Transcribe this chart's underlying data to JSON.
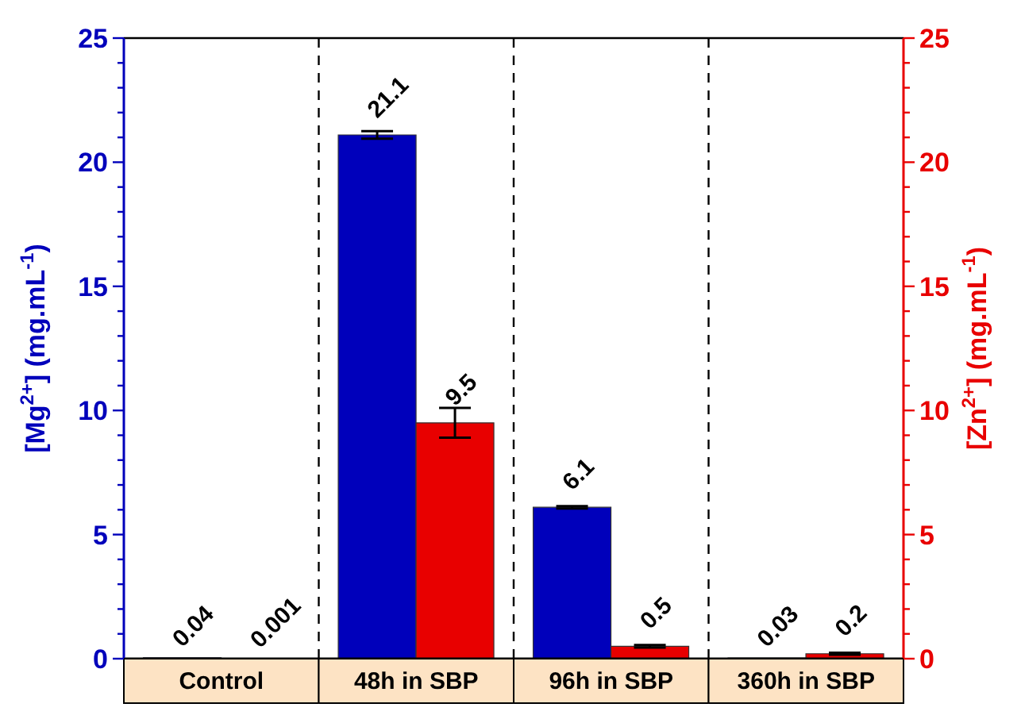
{
  "chart_data": {
    "type": "bar",
    "categories": [
      "Control",
      "48h in SBP",
      "96h in SBP",
      "360h in SBP"
    ],
    "series": [
      {
        "name": null,
        "color": "#0000bb",
        "values": [
          0.04,
          21.1,
          6.1,
          0.03
        ],
        "errors": [
          null,
          0.15,
          0.05,
          null
        ]
      },
      {
        "name": null,
        "color": "#e80000",
        "values": [
          0.001,
          9.5,
          0.5,
          0.2
        ],
        "errors": [
          null,
          0.6,
          0.05,
          0.04
        ],
        "axis": "y2"
      }
    ],
    "ylabel": "[Mg$^{2+}$] (mg.mL$^{-1}$)",
    "y2label": "[Zn$^{2+}$] (mg.mL$^{-1}$)",
    "ylim": [
      0,
      25
    ],
    "yticks": [
      0,
      {
        "value": 1,
        "label": null
      },
      {
        "value": 2,
        "label": null
      },
      {
        "value": 3,
        "label": null
      },
      {
        "value": 4,
        "label": null
      },
      5,
      {
        "value": 6,
        "label": null
      },
      {
        "value": 7,
        "label": null
      },
      {
        "value": 8,
        "label": null
      },
      {
        "value": 9,
        "label": null
      },
      10,
      {
        "value": 11,
        "label": null
      },
      {
        "value": 12,
        "label": null
      },
      {
        "value": 13,
        "label": null
      },
      {
        "value": 14,
        "label": null
      },
      15,
      {
        "value": 16,
        "label": null
      },
      {
        "value": 17,
        "label": null
      },
      {
        "value": 18,
        "label": null
      },
      {
        "value": 19,
        "label": null
      },
      20,
      {
        "value": 21,
        "label": null
      },
      {
        "value": 22,
        "label": null
      },
      {
        "value": 23,
        "label": null
      },
      {
        "value": 24,
        "label": null
      },
      25
    ],
    "y2lim": [
      0,
      25
    ],
    "y2ticks": [
      0,
      {
        "value": 1,
        "label": null
      },
      {
        "value": 2,
        "label": null
      },
      {
        "value": 3,
        "label": null
      },
      {
        "value": 4,
        "label": null
      },
      5,
      {
        "value": 6,
        "label": null
      },
      {
        "value": 7,
        "label": null
      },
      {
        "value": 8,
        "label": null
      },
      {
        "value": 9,
        "label": null
      },
      10,
      {
        "value": 11,
        "label": null
      },
      {
        "value": 12,
        "label": null
      },
      {
        "value": 13,
        "label": null
      },
      {
        "value": 14,
        "label": null
      },
      15,
      {
        "value": 16,
        "label": null
      },
      {
        "value": 17,
        "label": null
      },
      {
        "value": 18,
        "label": null
      },
      {
        "value": 19,
        "label": null
      },
      20,
      {
        "value": 21,
        "label": null
      },
      {
        "value": 22,
        "label": null
      },
      {
        "value": 23,
        "label": null
      },
      {
        "value": 24,
        "label": null
      },
      25
    ],
    "data_labels": true
  }
}
